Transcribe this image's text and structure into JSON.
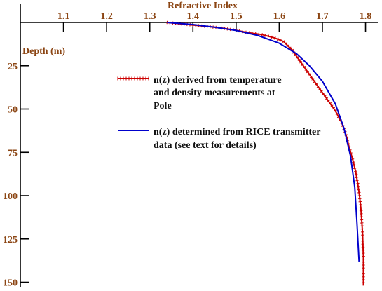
{
  "chart_data": {
    "type": "line",
    "x_axis": {
      "label": "Refractive Index",
      "ticks": [
        "1.1",
        "1.2",
        "1.3",
        "1.4",
        "1.5",
        "1.6",
        "1.7",
        "1.8"
      ],
      "range": [
        1.0,
        1.83
      ],
      "position": "top"
    },
    "y_axis": {
      "label": "Depth (m)",
      "ticks": [
        "25",
        "50",
        "75",
        "100",
        "125",
        "150"
      ],
      "range": [
        0,
        152
      ],
      "inverted": true
    },
    "grid": false,
    "legend_placement": "top-center",
    "series": [
      {
        "name": "n(z) derived from temperature and density measurements at Pole",
        "legend_lines": [
          "n(z) derived from temperature",
          "and density measurements at",
          "Pole"
        ],
        "color": "#cc0000",
        "style": "line-with-tick-markers",
        "x": [
          1.34,
          1.38,
          1.42,
          1.46,
          1.5,
          1.53,
          1.56,
          1.59,
          1.61,
          1.63,
          1.65,
          1.67,
          1.69,
          1.71,
          1.73,
          1.745,
          1.755,
          1.762,
          1.77,
          1.777,
          1.782,
          1.786,
          1.789,
          1.791,
          1.793,
          1.794,
          1.795,
          1.795
        ],
        "y": [
          0,
          1,
          2,
          3,
          4.5,
          6,
          7,
          9,
          11,
          16,
          23,
          30,
          37,
          44,
          51,
          58,
          65,
          72,
          79,
          86,
          93,
          100,
          107,
          114,
          121,
          128,
          135,
          152
        ]
      },
      {
        "name": "n(z) determined from RICE transmitter data (see text for details)",
        "legend_lines": [
          "n(z) determined from RICE transmitter",
          "data (see text for details)"
        ],
        "color": "#0000cc",
        "style": "line",
        "x": [
          1.34,
          1.4,
          1.45,
          1.5,
          1.55,
          1.6,
          1.64,
          1.67,
          1.7,
          1.73,
          1.75,
          1.765,
          1.775,
          1.78,
          1.785
        ],
        "y": [
          0,
          1.2,
          2.7,
          4.6,
          7.5,
          12,
          18,
          25,
          34,
          47,
          61,
          77,
          95,
          115,
          138
        ]
      }
    ]
  }
}
